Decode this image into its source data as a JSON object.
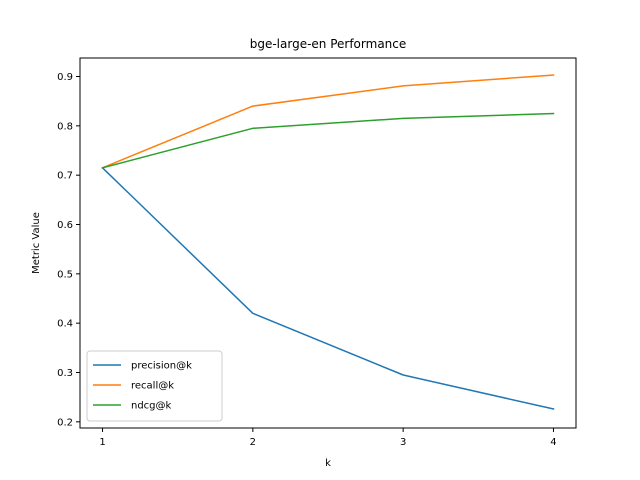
{
  "chart_data": {
    "type": "line",
    "title": "bge-large-en Performance",
    "xlabel": "k",
    "ylabel": "Metric Value",
    "x": [
      1,
      2,
      3,
      4
    ],
    "xticks": [
      "1",
      "2",
      "3",
      "4"
    ],
    "yticks": [
      "0.2",
      "0.3",
      "0.4",
      "0.5",
      "0.6",
      "0.7",
      "0.8",
      "0.9"
    ],
    "xlim": [
      0.85,
      4.15
    ],
    "ylim": [
      0.1875,
      0.9375
    ],
    "legend_position": "lower-left",
    "grid": false,
    "series": [
      {
        "name": "precision@k",
        "color": "#1f77b4",
        "values": [
          0.715,
          0.42,
          0.295,
          0.226
        ]
      },
      {
        "name": "recall@k",
        "color": "#ff7f0e",
        "values": [
          0.715,
          0.84,
          0.881,
          0.903
        ]
      },
      {
        "name": "ndcg@k",
        "color": "#2ca02c",
        "values": [
          0.715,
          0.795,
          0.815,
          0.825
        ]
      }
    ]
  }
}
